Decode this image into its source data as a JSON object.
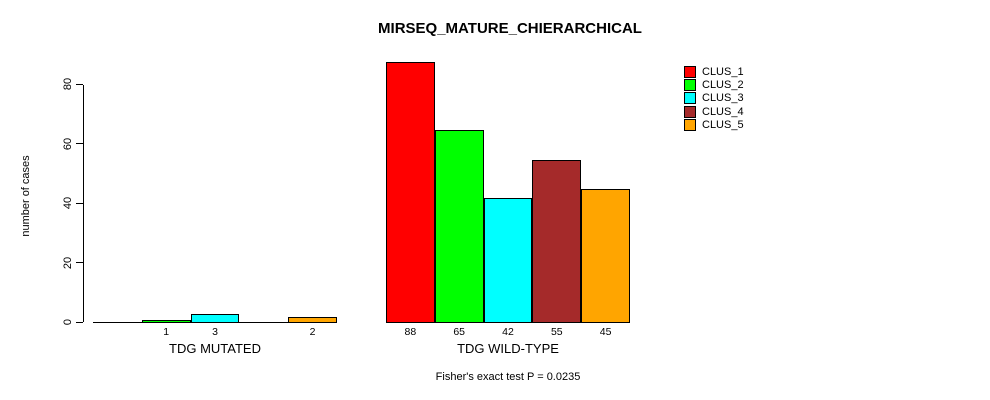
{
  "chart_data": {
    "type": "bar",
    "title": "MIRSEQ_MATURE_CHIERARCHICAL",
    "ylabel": "number of cases",
    "yticks": [
      0,
      20,
      40,
      60,
      80
    ],
    "ylim": [
      0,
      88
    ],
    "grid": false,
    "legend_position": "top-right",
    "categories": [
      "TDG MUTATED",
      "TDG WILD-TYPE"
    ],
    "series": [
      {
        "name": "CLUS_1",
        "color": "#ff0000",
        "values": [
          0,
          88
        ]
      },
      {
        "name": "CLUS_2",
        "color": "#00ff00",
        "values": [
          1,
          65
        ]
      },
      {
        "name": "CLUS_3",
        "color": "#00ffff",
        "values": [
          3,
          42
        ]
      },
      {
        "name": "CLUS_4",
        "color": "#a52a2a",
        "values": [
          0,
          55
        ]
      },
      {
        "name": "CLUS_5",
        "color": "#ffa500",
        "values": [
          2,
          45
        ]
      }
    ],
    "bar_labels": [
      [
        "",
        "1",
        "3",
        "",
        "2"
      ],
      [
        "88",
        "65",
        "42",
        "55",
        "45"
      ]
    ],
    "annotation": "Fisher's exact test P = 0.0235"
  }
}
